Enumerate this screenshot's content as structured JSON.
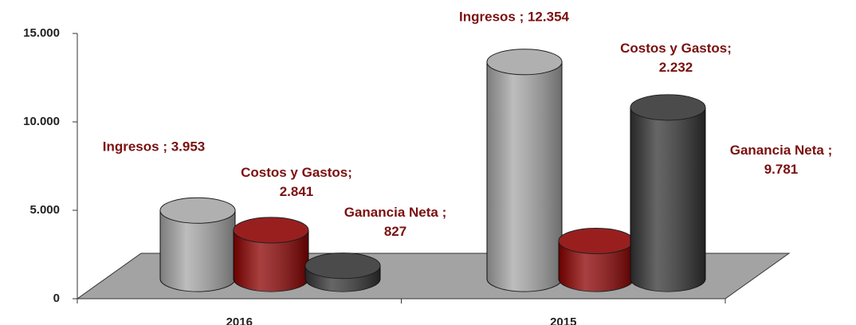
{
  "chart_data": {
    "type": "cylinder-bar",
    "categories": [
      "2016",
      "2015"
    ],
    "series": [
      {
        "name": "Ingresos",
        "color": "#a6a6a6",
        "values": [
          3953,
          12354
        ],
        "value_labels": [
          "Ingresos ; 3.953",
          "Ingresos ; 12.354"
        ]
      },
      {
        "name": "Costos y Gastos",
        "color": "#8b0000",
        "values": [
          2841,
          2232
        ],
        "value_labels": [
          "Costos y Gastos;\n2.841",
          "Costos y Gastos;\n2.232"
        ]
      },
      {
        "name": "Ganancia Neta",
        "color": "#333333",
        "values": [
          827,
          9781
        ],
        "value_labels": [
          "Ganancia Neta ;\n827",
          "Ganancia Neta ;\n9.781"
        ]
      }
    ],
    "ylim": [
      0,
      15000
    ],
    "yticks": [
      0,
      {
        "value": 5000,
        "label": "5.000"
      },
      {
        "value": 10000,
        "label": "10.000"
      },
      {
        "value": 15000,
        "label": "15.000"
      }
    ]
  }
}
